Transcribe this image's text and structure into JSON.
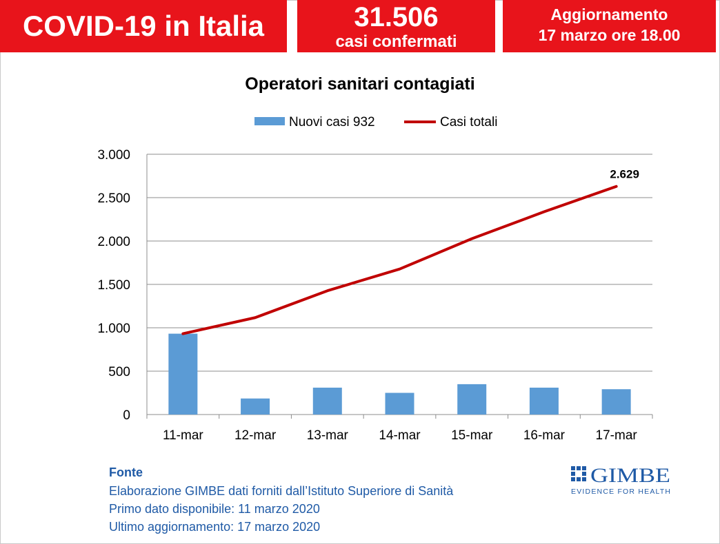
{
  "header": {
    "title": "COVID-19 in Italia",
    "cases_number": "31.506",
    "cases_label": "casi confermati",
    "update_label": "Aggiornamento",
    "update_date": "17 marzo ore 18.00"
  },
  "colors": {
    "header_red": "#e8141b",
    "bar_blue": "#5b9bd5",
    "line_red": "#c00000",
    "source_blue": "#1f5aa6"
  },
  "chart_data": {
    "type": "bar",
    "title": "Operatori sanitari contagiati",
    "categories": [
      "11-mar",
      "12-mar",
      "13-mar",
      "14-mar",
      "15-mar",
      "16-mar",
      "17-mar"
    ],
    "series": [
      {
        "name": "Nuovi casi 932",
        "kind": "bar",
        "values": [
          932,
          185,
          310,
          250,
          350,
          310,
          292
        ]
      },
      {
        "name": "Casi totali",
        "kind": "line",
        "values": [
          932,
          1117,
          1427,
          1677,
          2027,
          2337,
          2629
        ]
      }
    ],
    "ylim": [
      0,
      3000
    ],
    "yticks": [
      0,
      500,
      1000,
      1500,
      2000,
      2500,
      3000
    ],
    "ytick_labels": [
      "0",
      "500",
      "1.000",
      "1.500",
      "2.000",
      "2.500",
      "3.000"
    ],
    "grid": true,
    "legend": "top-center",
    "annotations": [
      {
        "series": "Casi totali",
        "category": "17-mar",
        "text": "2.629"
      }
    ],
    "xlabel": "",
    "ylabel": ""
  },
  "source": {
    "heading": "Fonte",
    "line1": "Elaborazione GIMBE dati forniti dall’Istituto Superiore di Sanità",
    "line2": "Primo dato disponibile: 11 marzo 2020",
    "line3": "Ultimo aggiornamento: 17 marzo 2020"
  },
  "logo": {
    "name": "GIMBE",
    "tagline": "EVIDENCE FOR HEALTH"
  }
}
